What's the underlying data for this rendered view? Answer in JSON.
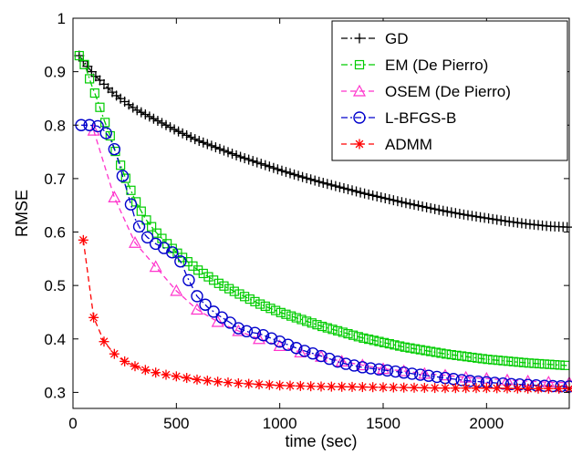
{
  "chart_data": {
    "type": "line",
    "xlabel": "time (sec)",
    "ylabel": "RMSE",
    "xlim": [
      0,
      2400
    ],
    "ylim": [
      0.27,
      1.0
    ],
    "xticks": [
      0,
      500,
      1000,
      1500,
      2000
    ],
    "yticks": [
      0.3,
      0.4,
      0.5,
      0.6,
      0.7,
      0.8,
      0.9,
      1.0
    ],
    "xtick_labels": [
      "0",
      "500",
      "1000",
      "1500",
      "2000"
    ],
    "ytick_labels": [
      "0.3",
      "0.4",
      "0.5",
      "0.6",
      "0.7",
      "0.8",
      "0.9",
      "1"
    ],
    "grid": false,
    "legend_position": "top-right",
    "series": [
      {
        "name": "GD",
        "color": "#000000",
        "marker": "plus",
        "line_style": "dashdot",
        "x": [
          30,
          100,
          200,
          300,
          400,
          500,
          600,
          700,
          800,
          900,
          1000,
          1100,
          1200,
          1300,
          1400,
          1500,
          1600,
          1700,
          1800,
          1900,
          2000,
          2100,
          2200,
          2300,
          2400
        ],
        "y": [
          0.93,
          0.895,
          0.858,
          0.83,
          0.81,
          0.79,
          0.772,
          0.757,
          0.742,
          0.729,
          0.716,
          0.704,
          0.693,
          0.683,
          0.673,
          0.664,
          0.655,
          0.647,
          0.639,
          0.632,
          0.626,
          0.62,
          0.615,
          0.611,
          0.609
        ],
        "marker_every": 20
      },
      {
        "name": "EM (De Pierro)",
        "color": "#00cc00",
        "marker": "square",
        "line_style": "dashdot",
        "x": [
          30,
          60,
          90,
          120,
          150,
          180,
          210,
          250,
          300,
          350,
          400,
          450,
          500,
          600,
          700,
          800,
          900,
          1000,
          1200,
          1400,
          1600,
          1800,
          2000,
          2200,
          2400
        ],
        "y": [
          0.93,
          0.91,
          0.875,
          0.845,
          0.81,
          0.78,
          0.745,
          0.705,
          0.66,
          0.625,
          0.6,
          0.58,
          0.562,
          0.53,
          0.505,
          0.485,
          0.466,
          0.45,
          0.424,
          0.402,
          0.385,
          0.372,
          0.362,
          0.355,
          0.35
        ],
        "marker_every": 25
      },
      {
        "name": "OSEM (De Pierro)",
        "color": "#ff33cc",
        "marker": "triangle",
        "line_style": "dashed",
        "x": [
          100,
          200,
          300,
          400,
          500,
          600,
          700,
          800,
          900,
          1000,
          1100,
          1200,
          1300,
          1400,
          1500,
          1600,
          1700,
          1800,
          1900,
          2000,
          2100,
          2200,
          2300,
          2400
        ],
        "y": [
          0.79,
          0.665,
          0.58,
          0.535,
          0.49,
          0.455,
          0.432,
          0.415,
          0.4,
          0.387,
          0.375,
          0.367,
          0.358,
          0.351,
          0.344,
          0.34,
          0.335,
          0.332,
          0.328,
          0.326,
          0.323,
          0.321,
          0.319,
          0.318
        ],
        "marker_every": 100
      },
      {
        "name": "L-BFGS-B",
        "color": "#0000cc",
        "marker": "circle",
        "line_style": "dashdot",
        "x": [
          40,
          80,
          120,
          150,
          180,
          210,
          240,
          270,
          300,
          330,
          360,
          400,
          440,
          480,
          520,
          560,
          600,
          650,
          700,
          750,
          800,
          850,
          900,
          1000,
          1100,
          1200,
          1300,
          1400,
          1500,
          1600,
          1700,
          1800,
          1900,
          2000,
          2100,
          2200,
          2300,
          2400
        ],
        "y": [
          0.8,
          0.8,
          0.798,
          0.79,
          0.775,
          0.745,
          0.705,
          0.665,
          0.625,
          0.603,
          0.59,
          0.578,
          0.57,
          0.562,
          0.545,
          0.51,
          0.48,
          0.46,
          0.445,
          0.433,
          0.42,
          0.413,
          0.41,
          0.395,
          0.38,
          0.368,
          0.355,
          0.347,
          0.342,
          0.337,
          0.332,
          0.327,
          0.322,
          0.319,
          0.316,
          0.314,
          0.312,
          0.311
        ],
        "marker_every": 40
      },
      {
        "name": "ADMM",
        "color": "#ff0000",
        "marker": "star",
        "line_style": "dashed",
        "x": [
          50,
          100,
          150,
          200,
          250,
          300,
          350,
          400,
          450,
          500,
          600,
          700,
          800,
          900,
          1000,
          1200,
          1400,
          1600,
          1800,
          2000,
          2200,
          2400
        ],
        "y": [
          0.585,
          0.44,
          0.395,
          0.372,
          0.358,
          0.349,
          0.342,
          0.337,
          0.333,
          0.33,
          0.324,
          0.32,
          0.317,
          0.315,
          0.313,
          0.311,
          0.31,
          0.309,
          0.308,
          0.308,
          0.307,
          0.307
        ],
        "marker_every": 50
      }
    ]
  }
}
